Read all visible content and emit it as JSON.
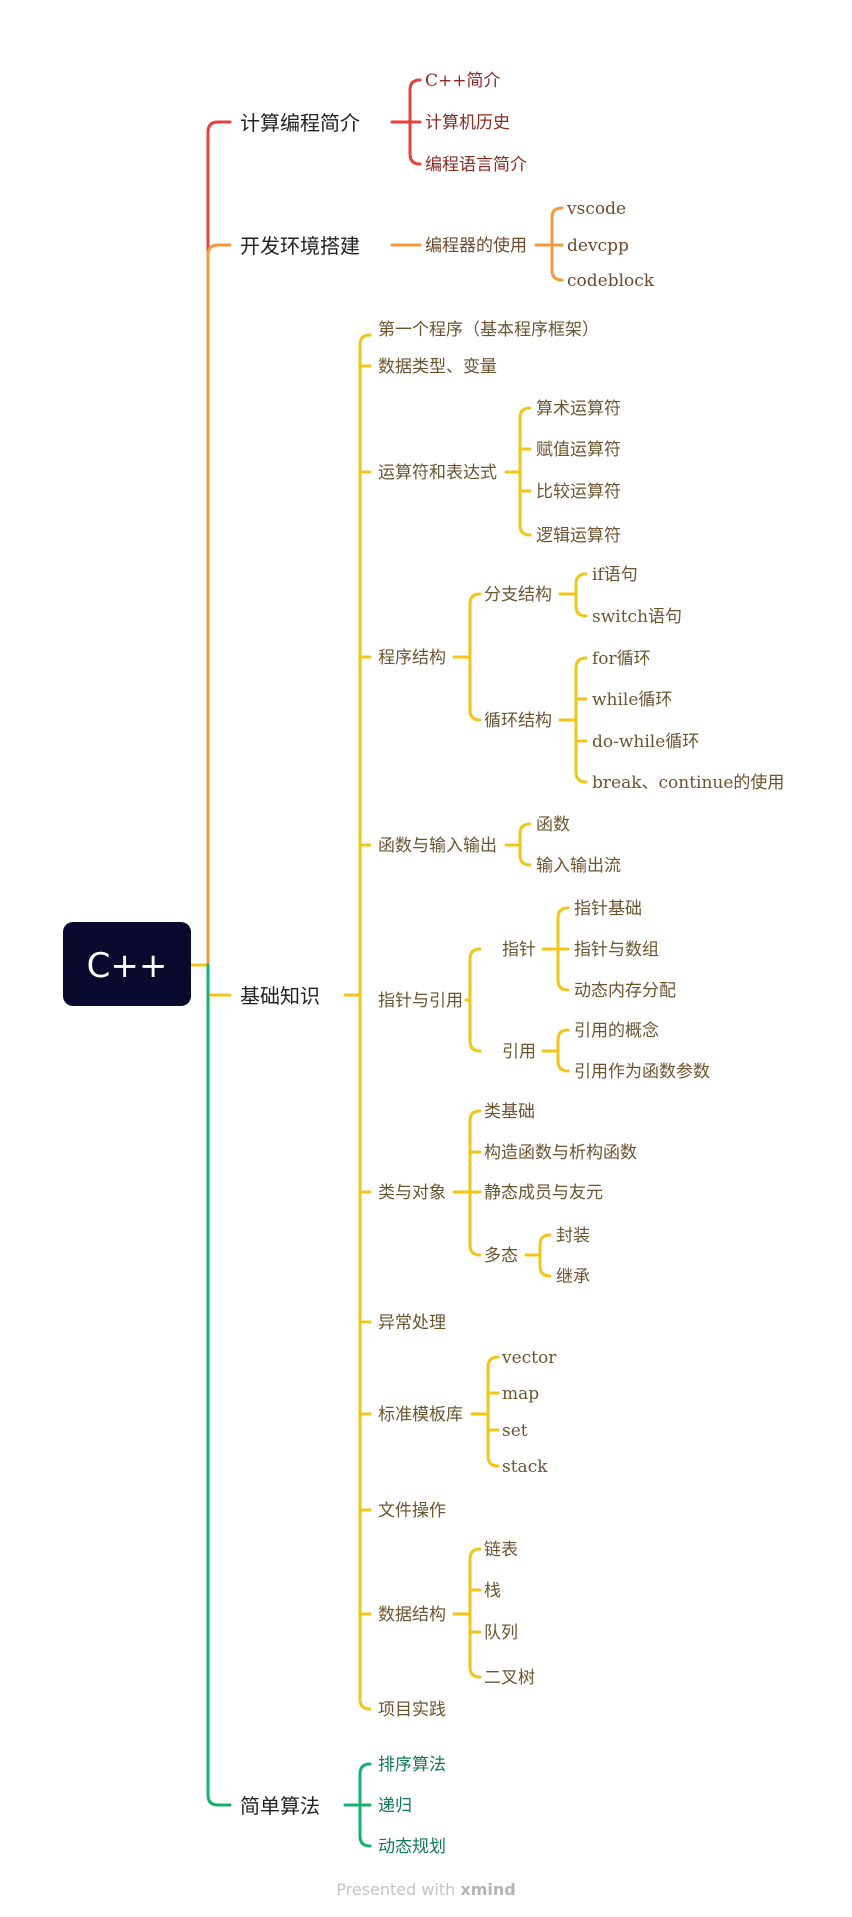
{
  "root": {
    "label": "C++",
    "bg": "#0a0a2e",
    "text_color": "#ffffff"
  },
  "colors": {
    "red": "#e8413c",
    "orange": "#f39a3f",
    "yellow": "#f2c618",
    "green": "#14b26e",
    "text_red": "#8c2a20",
    "text_orange": "#6e4a2e",
    "text_yellow": "#6b5530",
    "text_green": "#13785a"
  },
  "branches": {
    "intro": {
      "label": "计算编程简介",
      "items": [
        "C++简介",
        "计算机历史",
        "编程语言简介"
      ]
    },
    "env": {
      "label": "开发环境搭建",
      "editor": {
        "label": "编程器的使用",
        "items": [
          "vscode",
          "devcpp",
          "codeblock"
        ]
      }
    },
    "basics": {
      "label": "基础知识",
      "first_program": "第一个程序（基本程序框架）",
      "data_types": "数据类型、变量",
      "operators": {
        "label": "运算符和表达式",
        "items": [
          "算术运算符",
          "赋值运算符",
          "比较运算符",
          "逻辑运算符"
        ]
      },
      "structure": {
        "label": "程序结构",
        "branch": {
          "label": "分支结构",
          "items": [
            "if语句",
            "switch语句"
          ]
        },
        "loop": {
          "label": "循环结构",
          "items": [
            "for循环",
            "while循环",
            "do-while循环",
            "break、continue的使用"
          ]
        }
      },
      "functions": {
        "label": "函数与输入输出",
        "items": [
          "函数",
          "输入输出流"
        ]
      },
      "pointers": {
        "label": "指针与引用",
        "pointer": {
          "label": "指针",
          "items": [
            "指针基础",
            "指针与数组",
            "动态内存分配"
          ]
        },
        "reference": {
          "label": "引用",
          "items": [
            "引用的概念",
            "引用作为函数参数"
          ]
        }
      },
      "classes": {
        "label": "类与对象",
        "items": [
          "类基础",
          "构造函数与析构函数",
          "静态成员与友元"
        ],
        "poly": {
          "label": "多态",
          "items": [
            "封装",
            "继承"
          ]
        }
      },
      "exceptions": "异常处理",
      "stl": {
        "label": "标准模板库",
        "items": [
          "vector",
          "map",
          "set",
          "stack"
        ]
      },
      "files": "文件操作",
      "ds": {
        "label": "数据结构",
        "items": [
          "链表",
          "栈",
          "队列",
          "二叉树"
        ]
      },
      "project": "项目实践"
    },
    "algo": {
      "label": "简单算法",
      "items": [
        "排序算法",
        "递归",
        "动态规划"
      ]
    }
  },
  "footer": {
    "prefix": "Presented with ",
    "brand": "xmind"
  }
}
